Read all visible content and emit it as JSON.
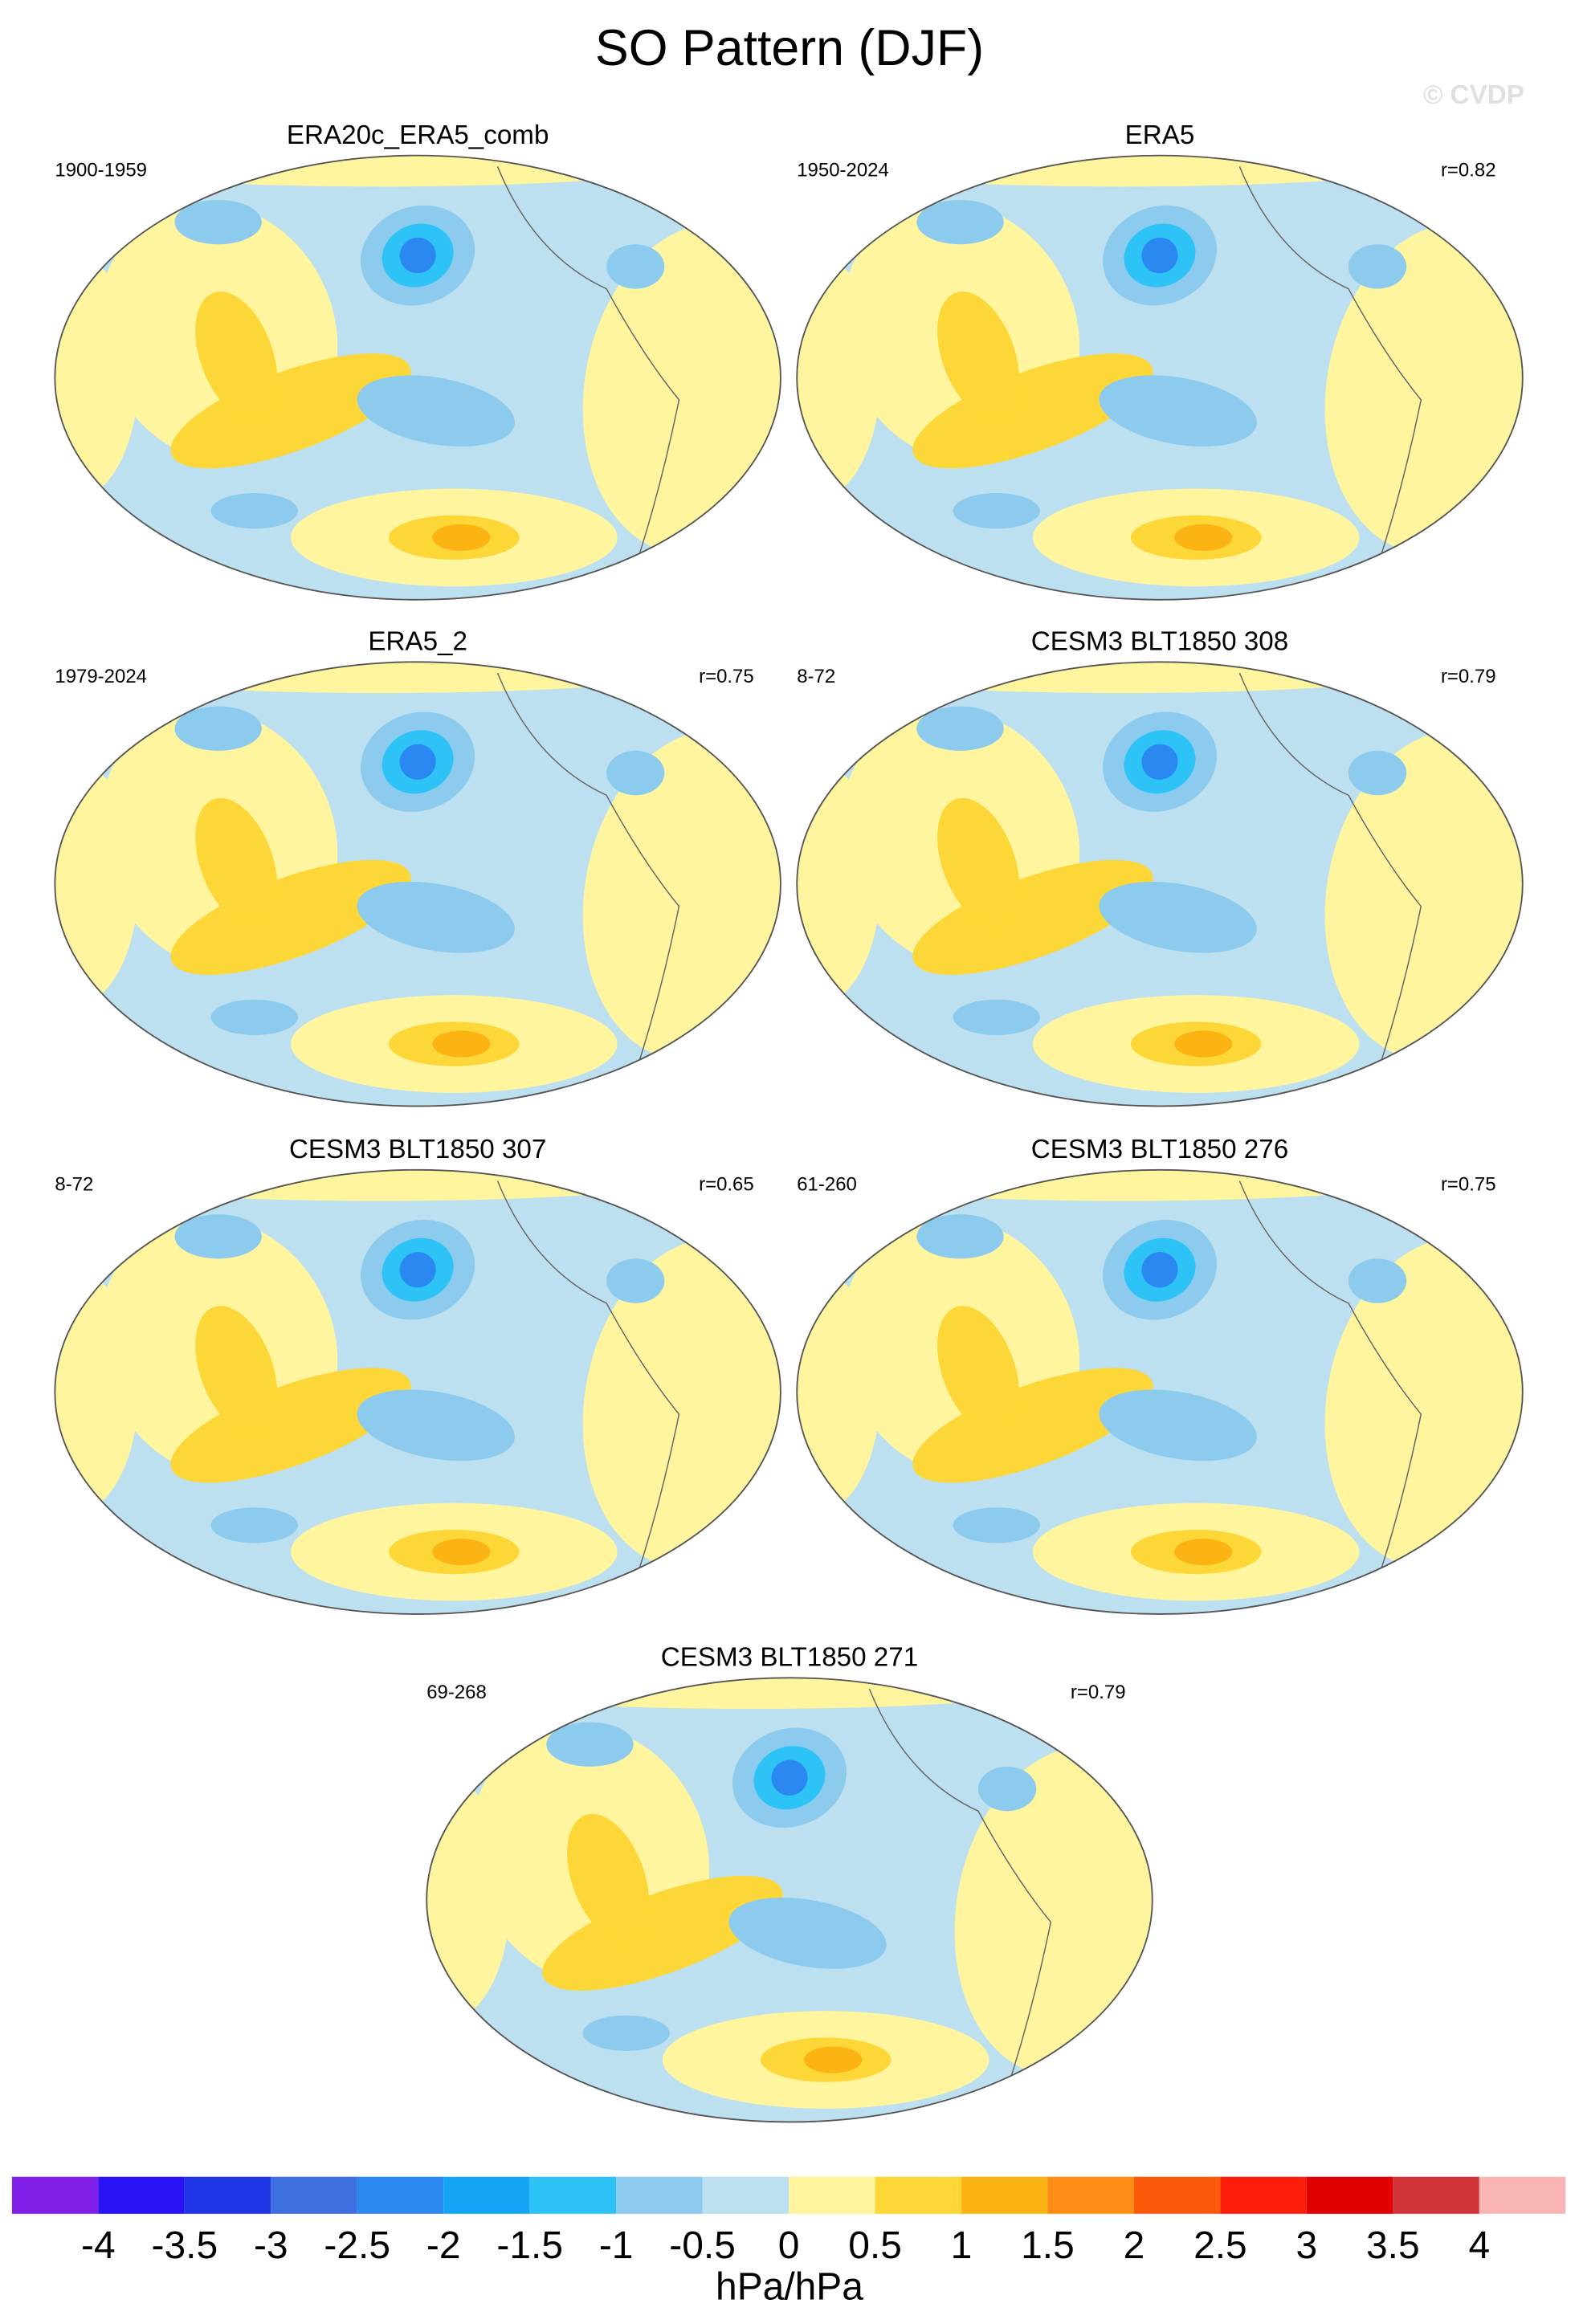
{
  "header": {
    "title": "SO Pattern (DJF)",
    "watermark": "© CVDP"
  },
  "panels": [
    {
      "title": "ERA20c_ERA5_comb",
      "left": "1900-1959"
    },
    {
      "title": "ERA5",
      "left": "1950-2024",
      "right": "r=0.82"
    },
    {
      "title": "ERA5_2",
      "left": "1979-2024",
      "right": "r=0.75"
    },
    {
      "title": "CESM3 BLT1850 308",
      "left": "8-72",
      "right": "r=0.79"
    },
    {
      "title": "CESM3 BLT1850 307",
      "left": "8-72",
      "right": "r=0.65"
    },
    {
      "title": "CESM3 BLT1850 276",
      "left": "61-260",
      "right": "r=0.75"
    },
    {
      "title": "CESM3 BLT1850 271",
      "left": "69-268",
      "right": "r=0.79"
    }
  ],
  "colorbar": {
    "colors": [
      "#7f1fe8",
      "#2a14f5",
      "#2035e6",
      "#3d6fe0",
      "#2b88f0",
      "#14a5f5",
      "#2ec3f7",
      "#8ccbee",
      "#bde0f0",
      "#fff59e",
      "#fcd737",
      "#fcb414",
      "#fd8c14",
      "#fc5a0a",
      "#fc1e0a",
      "#e10000",
      "#d2323a",
      "#fbb4b4"
    ],
    "ticks": [
      -4,
      -3.5,
      -3,
      -2.5,
      -2,
      -1.5,
      -1,
      -0.5,
      0,
      0.5,
      1,
      1.5,
      2,
      2.5,
      3,
      3.5,
      4
    ],
    "label": "hPa/hPa"
  }
}
